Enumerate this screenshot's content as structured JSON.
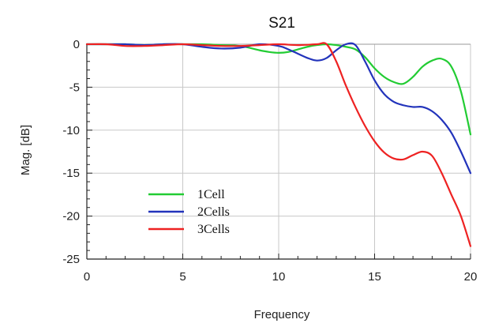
{
  "chart_data": {
    "type": "line",
    "title": "S21",
    "xlabel": "Frequency",
    "ylabel": "Mag. [dB]",
    "xlim": [
      0,
      20
    ],
    "ylim": [
      -25,
      0
    ],
    "xticks": [
      0,
      5,
      10,
      15,
      20
    ],
    "yticks": [
      0,
      -5,
      -10,
      -15,
      -20,
      -25
    ],
    "grid": true,
    "legend_position": "bottom-left",
    "series": [
      {
        "name": "1Cell",
        "color": "#22cc33",
        "x": [
          0,
          1,
          2,
          3,
          4,
          5,
          6,
          7,
          8,
          9,
          9.5,
          10,
          10.5,
          11,
          11.5,
          12,
          12.5,
          13,
          13.5,
          14,
          14.5,
          15,
          15.5,
          16,
          16.5,
          17,
          17.5,
          18,
          18.5,
          19,
          19.5,
          20
        ],
        "y": [
          0,
          0,
          0,
          -0.1,
          0,
          0,
          0,
          -0.1,
          -0.2,
          -0.7,
          -0.9,
          -1.0,
          -0.9,
          -0.6,
          -0.3,
          -0.1,
          0,
          -0.1,
          -0.3,
          -0.6,
          -1.5,
          -2.8,
          -3.8,
          -4.4,
          -4.6,
          -3.8,
          -2.6,
          -1.9,
          -1.7,
          -2.6,
          -5.5,
          -10.5
        ]
      },
      {
        "name": "2Cells",
        "color": "#2233bb",
        "x": [
          0,
          1,
          2,
          3,
          4,
          5,
          6,
          7,
          8,
          9,
          10,
          10.5,
          11,
          11.5,
          12,
          12.5,
          13,
          13.5,
          14,
          14.5,
          15,
          15.5,
          16,
          16.5,
          17,
          17.5,
          18,
          18.5,
          19,
          19.5,
          20
        ],
        "y": [
          0,
          0,
          0,
          -0.1,
          0,
          0,
          -0.3,
          -0.5,
          -0.4,
          0,
          -0.2,
          -0.6,
          -1.1,
          -1.6,
          -1.9,
          -1.6,
          -0.7,
          0,
          -0.1,
          -2.0,
          -4.2,
          -5.8,
          -6.7,
          -7.1,
          -7.3,
          -7.3,
          -7.8,
          -8.8,
          -10.3,
          -12.5,
          -15.0
        ]
      },
      {
        "name": "3Cells",
        "color": "#ee2222",
        "x": [
          0,
          1,
          2,
          3,
          4,
          5,
          6,
          7,
          8,
          9,
          10,
          11,
          12,
          12.5,
          13,
          13.5,
          14,
          14.5,
          15,
          15.5,
          16,
          16.5,
          17,
          17.5,
          18,
          18.5,
          19,
          19.5,
          20
        ],
        "y": [
          0,
          0,
          -0.2,
          -0.2,
          -0.1,
          0,
          -0.1,
          -0.2,
          -0.2,
          -0.1,
          0,
          -0.1,
          0,
          0,
          -2.0,
          -4.8,
          -7.3,
          -9.5,
          -11.3,
          -12.6,
          -13.3,
          -13.4,
          -12.9,
          -12.5,
          -13.0,
          -15.0,
          -17.5,
          -20.0,
          -23.5
        ]
      }
    ]
  }
}
